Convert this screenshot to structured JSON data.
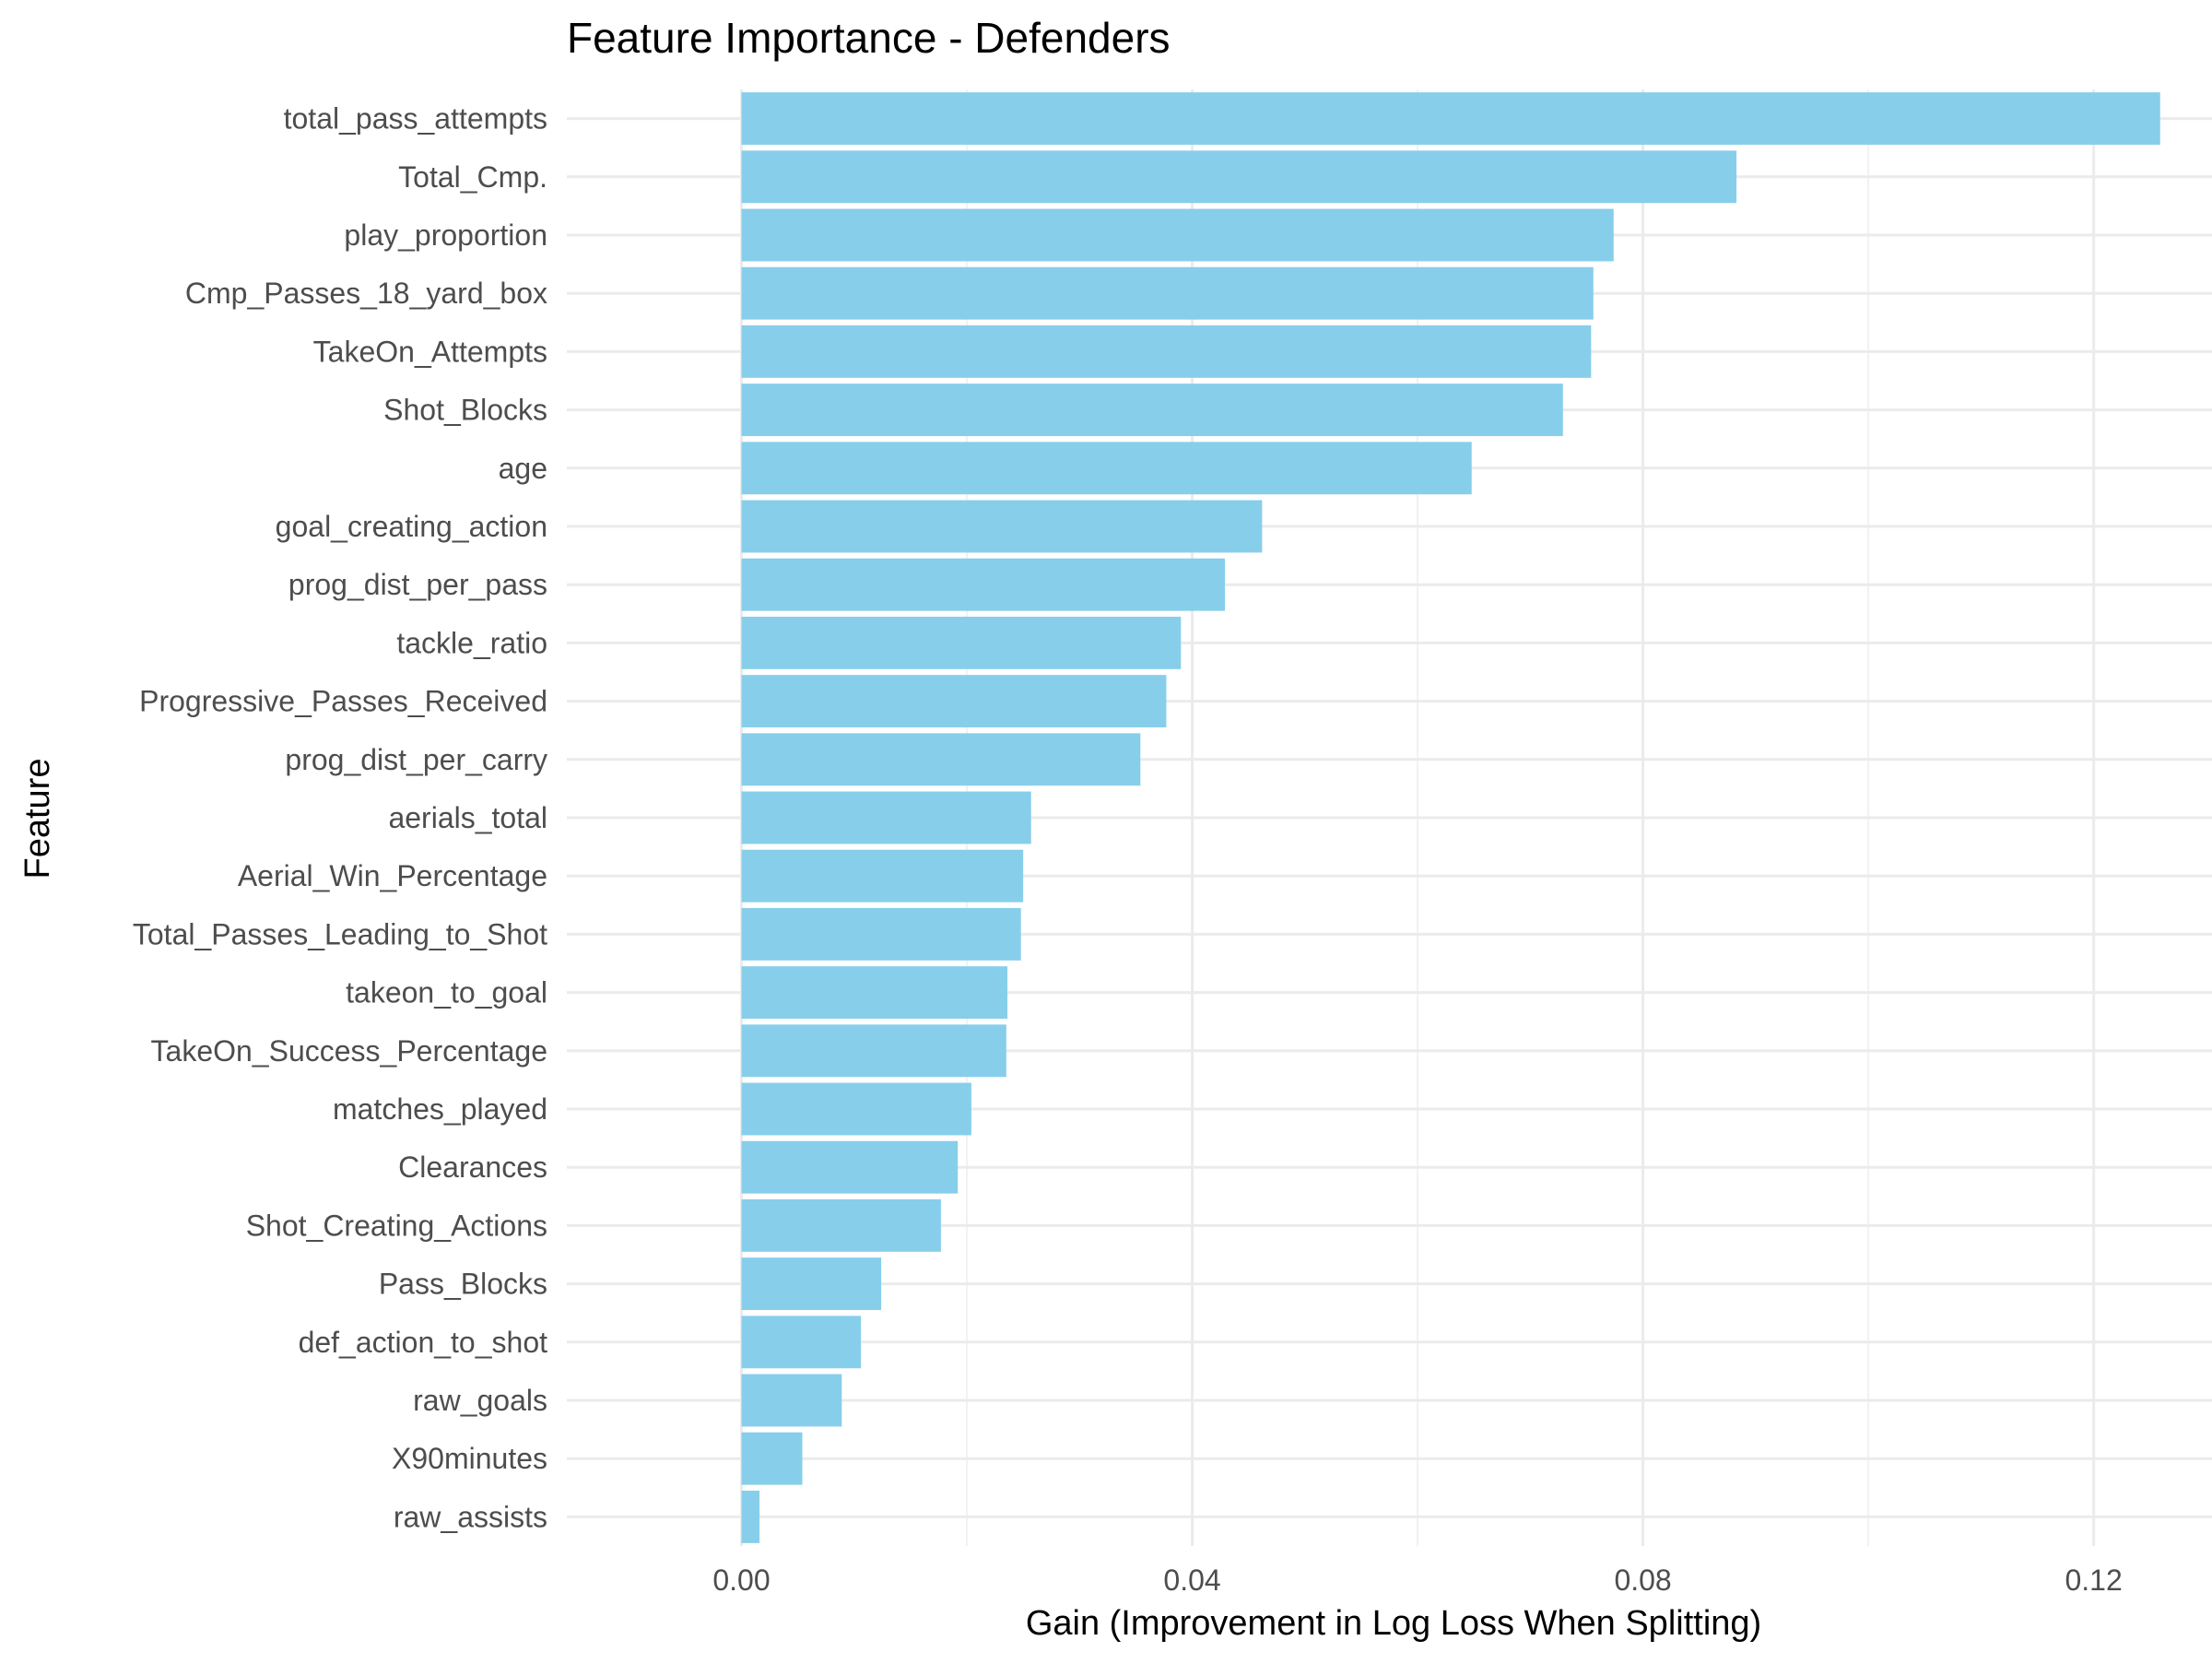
{
  "chart_data": {
    "type": "bar",
    "orientation": "horizontal",
    "title": "Feature Importance - Defenders",
    "xlabel": "Gain (Improvement in Log Loss When Splitting)",
    "ylabel": "Feature",
    "xlim": [
      -0.0155,
      0.1305
    ],
    "xticks": [
      0.0,
      0.04,
      0.08,
      0.12
    ],
    "xtick_labels": [
      "0.00",
      "0.04",
      "0.08",
      "0.12"
    ],
    "grid": true,
    "legend": "none",
    "bar_color": "#87CEEB",
    "categories": [
      "total_pass_attempts",
      "Total_Cmp.",
      "play_proportion",
      "Cmp_Passes_18_yard_box",
      "TakeOn_Attempts",
      "Shot_Blocks",
      "age",
      "goal_creating_action",
      "prog_dist_per_pass",
      "tackle_ratio",
      "Progressive_Passes_Received",
      "prog_dist_per_carry",
      "aerials_total",
      "Aerial_Win_Percentage",
      "Total_Passes_Leading_to_Shot",
      "takeon_to_goal",
      "TakeOn_Success_Percentage",
      "matches_played",
      "Clearances",
      "Shot_Creating_Actions",
      "Pass_Blocks",
      "def_action_to_shot",
      "raw_goals",
      "X90minutes",
      "raw_assists"
    ],
    "values": [
      0.1259,
      0.0883,
      0.0774,
      0.0756,
      0.0754,
      0.0729,
      0.0648,
      0.0462,
      0.0429,
      0.039,
      0.0377,
      0.0354,
      0.0257,
      0.025,
      0.0248,
      0.0236,
      0.0235,
      0.0204,
      0.0192,
      0.0177,
      0.0124,
      0.0106,
      0.0089,
      0.0054,
      0.0016
    ]
  }
}
